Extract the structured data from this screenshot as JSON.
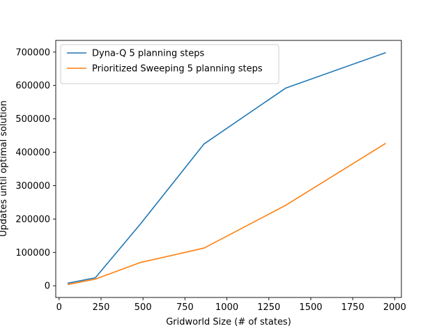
{
  "chart_data": {
    "type": "line",
    "xlabel": "Gridworld Size (# of states)",
    "ylabel": "Updates until optimal solution",
    "xlim": [
      -20,
      2040
    ],
    "ylim": [
      -35000,
      735000
    ],
    "xticks": [
      0,
      250,
      500,
      750,
      1000,
      1250,
      1500,
      1750,
      2000
    ],
    "yticks": [
      0,
      100000,
      200000,
      300000,
      400000,
      500000,
      600000,
      700000
    ],
    "grid": false,
    "legend_position": "top-left",
    "series": [
      {
        "name": "Dyna-Q 5 planning steps",
        "color": "#1f77b4",
        "x": [
          54,
          216,
          486,
          864,
          1350,
          1944
        ],
        "y": [
          8000,
          24000,
          186000,
          425000,
          592000,
          698000
        ]
      },
      {
        "name": "Prioritized Sweeping 5 planning steps",
        "color": "#ff7f0e",
        "x": [
          54,
          216,
          486,
          864,
          1350,
          1944
        ],
        "y": [
          4000,
          20000,
          70000,
          113000,
          241000,
          426000
        ]
      }
    ]
  }
}
